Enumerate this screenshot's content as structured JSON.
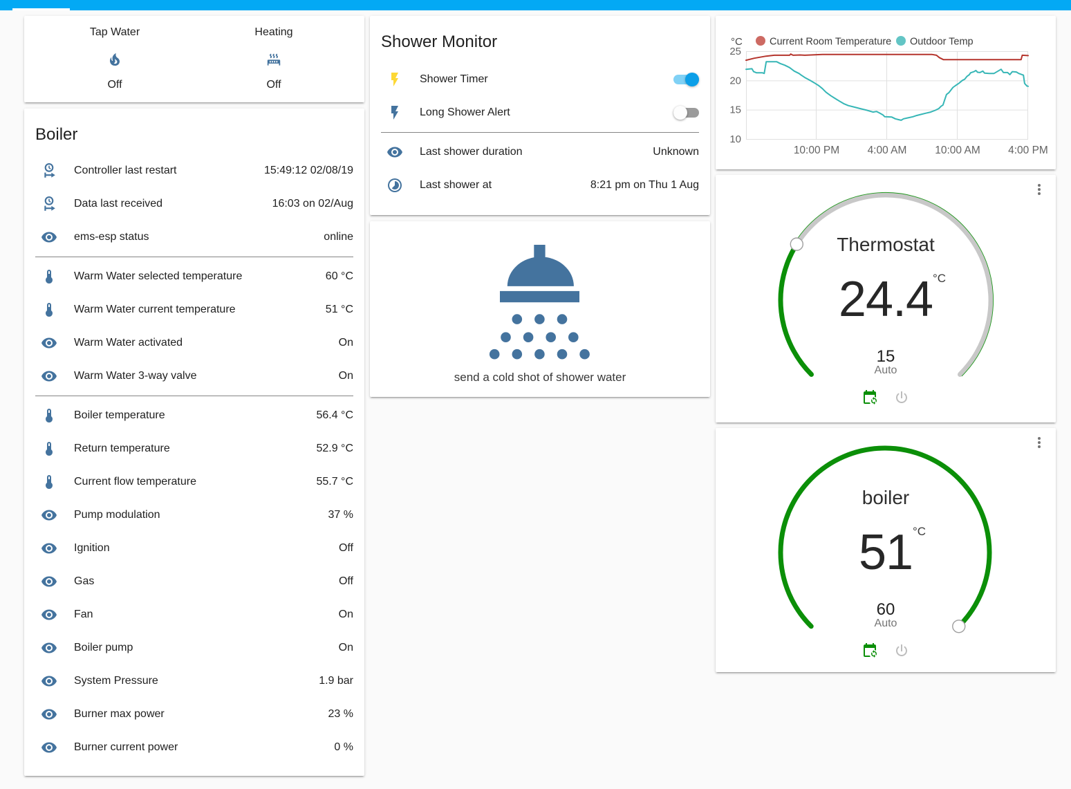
{
  "app": {
    "header_color": "#03a9f4",
    "background_color": "#fafafa",
    "accent_icon_color": "#44739e"
  },
  "glance_card": {
    "entities": [
      {
        "icon": "fire",
        "name": "Tap Water",
        "state": "Off"
      },
      {
        "icon": "radiator",
        "name": "Heating",
        "state": "Off"
      }
    ]
  },
  "boiler_card": {
    "title": "Boiler",
    "sections": [
      [
        {
          "icon": "clock-start",
          "name": "Controller last restart",
          "value": "15:49:12 02/08/19"
        },
        {
          "icon": "clock-start",
          "name": "Data last received",
          "value": "16:03 on 02/Aug"
        },
        {
          "icon": "eye",
          "name": "ems-esp status",
          "value": "online"
        }
      ],
      [
        {
          "icon": "thermometer",
          "name": "Warm Water selected temperature",
          "value": "60 °C"
        },
        {
          "icon": "thermometer",
          "name": "Warm Water current temperature",
          "value": "51 °C"
        },
        {
          "icon": "eye",
          "name": "Warm Water activated",
          "value": "On"
        },
        {
          "icon": "eye",
          "name": "Warm Water 3-way valve",
          "value": "On"
        }
      ],
      [
        {
          "icon": "thermometer",
          "name": "Boiler temperature",
          "value": "56.4 °C"
        },
        {
          "icon": "thermometer",
          "name": "Return temperature",
          "value": "52.9 °C"
        },
        {
          "icon": "thermometer",
          "name": "Current flow temperature",
          "value": "55.7 °C"
        },
        {
          "icon": "eye",
          "name": "Pump modulation",
          "value": "37 %"
        },
        {
          "icon": "eye",
          "name": "Ignition",
          "value": "Off"
        },
        {
          "icon": "eye",
          "name": "Gas",
          "value": "Off"
        },
        {
          "icon": "eye",
          "name": "Fan",
          "value": "On"
        },
        {
          "icon": "eye",
          "name": "Boiler pump",
          "value": "On"
        },
        {
          "icon": "eye",
          "name": "System Pressure",
          "value": "1.9 bar"
        },
        {
          "icon": "eye",
          "name": "Burner max power",
          "value": "23 %"
        },
        {
          "icon": "eye",
          "name": "Burner current power",
          "value": "0 %"
        }
      ]
    ]
  },
  "shower_card": {
    "title": "Shower Monitor",
    "sections": [
      [
        {
          "icon": "flash",
          "icon_color": "#fdd835",
          "name": "Shower Timer",
          "control": "toggle",
          "state": "on"
        },
        {
          "icon": "flash",
          "icon_color": "#44739e",
          "name": "Long Shower Alert",
          "control": "toggle",
          "state": "off"
        }
      ],
      [
        {
          "icon": "eye",
          "name": "Last shower duration",
          "value": "Unknown"
        },
        {
          "icon": "timelapse",
          "name": "Last shower at",
          "value": "8:21 pm on Thu 1 Aug"
        }
      ]
    ]
  },
  "shower_action_card": {
    "label": "send a cold shot of shower water",
    "icon": "shower-head",
    "icon_color": "#44739e"
  },
  "chart_data": {
    "type": "line",
    "title": "",
    "ylabel": "°C",
    "xlabel": "",
    "ylim": [
      10,
      25
    ],
    "yticks": [
      25,
      20,
      15,
      10
    ],
    "x_hours_range": [
      0,
      24
    ],
    "xticks": [
      {
        "hour": 6,
        "label": "10:00 PM"
      },
      {
        "hour": 12,
        "label": "4:00 AM"
      },
      {
        "hour": 18,
        "label": "10:00 AM"
      },
      {
        "hour": 24,
        "label": "4:00 PM"
      }
    ],
    "grid": true,
    "legend_position": "top",
    "series": [
      {
        "name": "Current Room Temperature",
        "color": "#b5342c",
        "dot_color": "#cd6a63",
        "points": [
          [
            0,
            23.45
          ],
          [
            0.7,
            23.8
          ],
          [
            1.7,
            24.15
          ],
          [
            2.4,
            24.3
          ],
          [
            3.7,
            24.3
          ],
          [
            3.8,
            24.5
          ],
          [
            4.0,
            24.3
          ],
          [
            4.6,
            24.35
          ],
          [
            5.0,
            24.3
          ],
          [
            6.5,
            24.45
          ],
          [
            15.8,
            24.45
          ],
          [
            16.2,
            24.3
          ],
          [
            16.45,
            23.9
          ],
          [
            16.8,
            23.55
          ],
          [
            23.4,
            23.55
          ],
          [
            23.5,
            24.3
          ],
          [
            24,
            24.25
          ]
        ]
      },
      {
        "name": "Outdoor Temp",
        "color": "#36b6b6",
        "dot_color": "#63c5c5",
        "points": [
          [
            0,
            21.9
          ],
          [
            0.5,
            22.0
          ],
          [
            0.65,
            21.5
          ],
          [
            0.9,
            21.3
          ],
          [
            1.4,
            21.3
          ],
          [
            1.55,
            21.2
          ],
          [
            1.72,
            23.2
          ],
          [
            2.6,
            23.2
          ],
          [
            2.9,
            22.9
          ],
          [
            3.3,
            22.6
          ],
          [
            3.7,
            22.2
          ],
          [
            4.1,
            21.6
          ],
          [
            4.5,
            21.2
          ],
          [
            4.7,
            20.9
          ],
          [
            5.0,
            20.5
          ],
          [
            5.45,
            20.0
          ],
          [
            5.8,
            19.6
          ],
          [
            6.2,
            19.1
          ],
          [
            6.5,
            18.6
          ],
          [
            6.8,
            18.0
          ],
          [
            7.2,
            17.4
          ],
          [
            7.6,
            16.9
          ],
          [
            8.0,
            16.4
          ],
          [
            8.35,
            16.0
          ],
          [
            8.7,
            15.7
          ],
          [
            9.1,
            15.5
          ],
          [
            9.7,
            15.2
          ],
          [
            10.3,
            14.9
          ],
          [
            10.8,
            14.6
          ],
          [
            11.1,
            14.7
          ],
          [
            11.3,
            14.5
          ],
          [
            11.65,
            14.1
          ],
          [
            11.8,
            13.8
          ],
          [
            12.4,
            13.75
          ],
          [
            12.7,
            13.45
          ],
          [
            13.0,
            13.3
          ],
          [
            13.2,
            13.2
          ],
          [
            13.4,
            13.45
          ],
          [
            13.75,
            13.6
          ],
          [
            14.2,
            13.8
          ],
          [
            14.5,
            14.0
          ],
          [
            14.9,
            14.2
          ],
          [
            15.3,
            14.4
          ],
          [
            15.7,
            14.6
          ],
          [
            16.1,
            14.9
          ],
          [
            16.4,
            15.2
          ],
          [
            16.6,
            15.6
          ],
          [
            16.75,
            15.8
          ],
          [
            16.85,
            16.4
          ],
          [
            17.05,
            17.6
          ],
          [
            17.25,
            17.9
          ],
          [
            17.45,
            18.4
          ],
          [
            17.6,
            18.8
          ],
          [
            17.8,
            19.1
          ],
          [
            18.1,
            19.5
          ],
          [
            18.4,
            20.0
          ],
          [
            18.6,
            20.2
          ],
          [
            18.8,
            20.7
          ],
          [
            19.0,
            21.0
          ],
          [
            19.1,
            21.3
          ],
          [
            19.4,
            21.5
          ],
          [
            19.55,
            21.7
          ],
          [
            19.7,
            21.4
          ],
          [
            19.9,
            21.35
          ],
          [
            20.15,
            21.6
          ],
          [
            20.3,
            21.25
          ],
          [
            20.7,
            21.2
          ],
          [
            21.1,
            21.2
          ],
          [
            21.7,
            21.9
          ],
          [
            21.9,
            21.35
          ],
          [
            22.25,
            21.35
          ],
          [
            22.45,
            21.0
          ],
          [
            22.65,
            21.5
          ],
          [
            23.0,
            21.45
          ],
          [
            23.2,
            21.2
          ],
          [
            23.6,
            20.9
          ],
          [
            23.7,
            19.5
          ],
          [
            23.9,
            19.05
          ],
          [
            24,
            19.0
          ]
        ]
      }
    ]
  },
  "thermostat_card": {
    "title": "Thermostat",
    "current": "24.4",
    "unit": "°C",
    "target": "15",
    "mode": "Auto",
    "min": 7,
    "max": 35,
    "target_value": 15,
    "arc_color": "#0b8f08",
    "track_color": "#c8c8c8"
  },
  "boiler_dial_card": {
    "title": "boiler",
    "current": "51",
    "unit": "°C",
    "target": "60",
    "mode": "Auto",
    "min": 0,
    "max": 60,
    "target_value": 60,
    "arc_color": "#0b8f08",
    "track_color": "#c8c8c8"
  }
}
